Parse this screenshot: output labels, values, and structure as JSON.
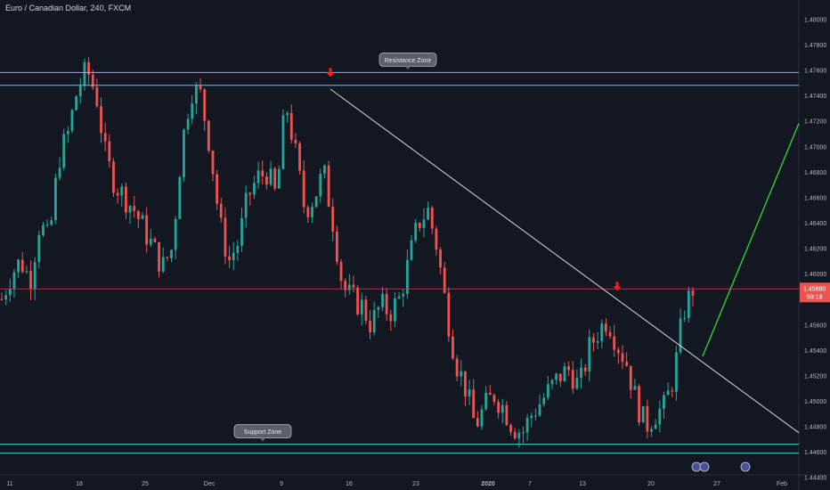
{
  "header": {
    "title": "Euro / Canadian Dollar, 240, FXCM"
  },
  "colors": {
    "background": "#131722",
    "up": "#26a69a",
    "down": "#ef5350",
    "zone_line": "#4dd0e1",
    "trendline": "#d9d9d9",
    "projection": "#32cd32",
    "price_line": "#b84b4b",
    "arrow": "#ff1a1a",
    "axis_text": "#b2b5be"
  },
  "chart_data": {
    "type": "candlestick",
    "title": "Euro / Canadian Dollar, 240, FXCM",
    "ylim": [
      1.443,
      1.4815
    ],
    "y_ticks": [
      "1.44400",
      "1.44600",
      "1.44800",
      "1.45000",
      "1.45200",
      "1.45400",
      "1.45600",
      "1.45800",
      "1.46000",
      "1.46200",
      "1.46400",
      "1.46600",
      "1.46800",
      "1.47000",
      "1.47200",
      "1.47400",
      "1.47600",
      "1.47800",
      "1.48000"
    ],
    "x_ticks": [
      "11",
      "18",
      "25",
      "Dec",
      "9",
      "16",
      "23",
      "2020",
      "7",
      "13",
      "20",
      "27",
      "Feb"
    ],
    "grid": false,
    "zones": [
      {
        "label": "Resistance Zone",
        "top": 1.4758,
        "bottom": 1.4748
      },
      {
        "label": "Support Zone",
        "top": 1.4466,
        "bottom": 1.4459
      }
    ],
    "trendline": {
      "from": {
        "date": "Dec 13",
        "price": 1.4745
      },
      "to": {
        "date": "Feb 1",
        "price": 1.4475
      }
    },
    "projection": {
      "from": {
        "date": "Jan 25",
        "price": 1.4535
      },
      "to": {
        "date": "Feb 2",
        "price": 1.4718
      }
    },
    "markers": [
      {
        "type": "down-arrow",
        "date": "Dec 13",
        "price": 1.475
      },
      {
        "type": "down-arrow",
        "date": "Jan 16",
        "price": 1.4579
      }
    ],
    "last_price": {
      "price": 1.4588,
      "label": "1.45880",
      "countdown": "59:19"
    },
    "ohlc_path": [
      [
        "11",
        1.458
      ],
      [
        "13",
        1.46
      ],
      [
        "15",
        1.461
      ],
      [
        "16",
        1.4595
      ],
      [
        "17",
        1.464
      ],
      [
        "18",
        1.4625
      ],
      [
        "19",
        1.469
      ],
      [
        "20",
        1.471
      ],
      [
        "21",
        1.4745
      ],
      [
        "22",
        1.476
      ],
      [
        "23",
        1.474
      ],
      [
        "24",
        1.469
      ],
      [
        "25",
        1.467
      ],
      [
        "26",
        1.466
      ],
      [
        "27",
        1.465
      ],
      [
        "28",
        1.4635
      ],
      [
        "29",
        1.462
      ],
      [
        "30",
        1.4605
      ],
      [
        "Dec 1",
        1.462
      ],
      [
        "Dec 2",
        1.47
      ],
      [
        "Dec 3",
        1.4745
      ],
      [
        "Dec 4",
        1.474
      ],
      [
        "Dec 5",
        1.47
      ],
      [
        "Dec 6",
        1.464
      ],
      [
        "Dec 7",
        1.461
      ],
      [
        "Dec 8",
        1.4625
      ],
      [
        "Dec 9",
        1.466
      ],
      [
        "Dec 10",
        1.4675
      ],
      [
        "Dec 11",
        1.468
      ],
      [
        "Dec 12",
        1.466
      ],
      [
        "Dec 13",
        1.4735
      ],
      [
        "Dec 14",
        1.4695
      ],
      [
        "Dec 15",
        1.465
      ],
      [
        "Dec 16",
        1.466
      ],
      [
        "Dec 17",
        1.468
      ],
      [
        "Dec 18",
        1.464
      ],
      [
        "Dec 19",
        1.459
      ],
      [
        "Dec 20",
        1.458
      ],
      [
        "Dec 21",
        1.4575
      ],
      [
        "Dec 22",
        1.456
      ],
      [
        "Dec 23",
        1.4575
      ],
      [
        "Dec 24",
        1.457
      ],
      [
        "Dec 25",
        1.458
      ],
      [
        "Dec 26",
        1.461
      ],
      [
        "Dec 27",
        1.464
      ],
      [
        "Dec 28",
        1.465
      ],
      [
        "Dec 29",
        1.462
      ],
      [
        "Dec 30",
        1.457
      ],
      [
        "Dec 31",
        1.453
      ],
      [
        "2020",
        1.451
      ],
      [
        "Jan 2",
        1.448
      ],
      [
        "Jan 3",
        1.4495
      ],
      [
        "Jan 4",
        1.4505
      ],
      [
        "Jan 5",
        1.4495
      ],
      [
        "Jan 6",
        1.448
      ],
      [
        "Jan 7",
        1.4475
      ],
      [
        "Jan 8",
        1.449
      ],
      [
        "Jan 9",
        1.45
      ],
      [
        "Jan 10",
        1.451
      ],
      [
        "Jan 11",
        1.452
      ],
      [
        "Jan 12",
        1.4525
      ],
      [
        "Jan 13",
        1.451
      ],
      [
        "Jan 14",
        1.454
      ],
      [
        "Jan 15",
        1.4555
      ],
      [
        "Jan 16",
        1.4565
      ],
      [
        "Jan 17",
        1.4545
      ],
      [
        "Jan 18",
        1.453
      ],
      [
        "Jan 19",
        1.45
      ],
      [
        "Jan 20",
        1.448
      ],
      [
        "Jan 21",
        1.449
      ],
      [
        "Jan 22",
        1.4495
      ],
      [
        "Jan 23",
        1.452
      ],
      [
        "Jan 24",
        1.457
      ],
      [
        "Jan 25",
        1.4588
      ]
    ]
  }
}
